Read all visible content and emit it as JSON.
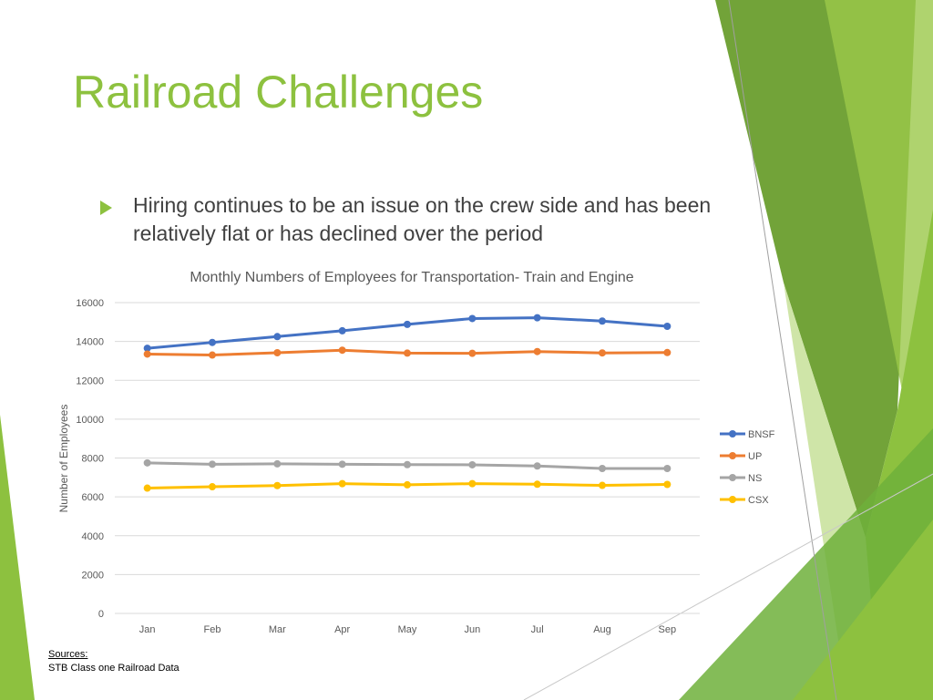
{
  "slide": {
    "title": "Railroad Challenges",
    "bullet": "Hiring continues to be an issue on the crew side and has been relatively flat or has declined over the period",
    "sources_heading": "Sources:",
    "sources_text": "STB Class one Railroad Data"
  },
  "colors": {
    "accent": "#8dc13f",
    "accent_dark": "#6a9e2e",
    "accent_light": "#cfe5a8"
  },
  "chart_data": {
    "type": "line",
    "title": "Monthly Numbers of Employees for Transportation- Train and Engine",
    "xlabel": "",
    "ylabel": "Number of Employees",
    "categories": [
      "Jan",
      "Feb",
      "Mar",
      "Apr",
      "May",
      "Jun",
      "Jul",
      "Aug",
      "Sep"
    ],
    "ylim": [
      0,
      16000
    ],
    "yticks": [
      0,
      2000,
      4000,
      6000,
      8000,
      10000,
      12000,
      14000,
      16000
    ],
    "grid": true,
    "legend": "right",
    "series": [
      {
        "name": "BNSF",
        "color": "#4472c4",
        "values": [
          13650,
          13950,
          14250,
          14550,
          14880,
          15180,
          15220,
          15050,
          14780
        ]
      },
      {
        "name": "UP",
        "color": "#ed7d31",
        "values": [
          13350,
          13300,
          13420,
          13550,
          13400,
          13390,
          13480,
          13410,
          13430
        ]
      },
      {
        "name": "NS",
        "color": "#a5a5a5",
        "values": [
          7750,
          7680,
          7700,
          7680,
          7660,
          7650,
          7590,
          7460,
          7460
        ]
      },
      {
        "name": "CSX",
        "color": "#ffc000",
        "values": [
          6450,
          6520,
          6580,
          6680,
          6620,
          6680,
          6650,
          6590,
          6640
        ]
      }
    ]
  }
}
